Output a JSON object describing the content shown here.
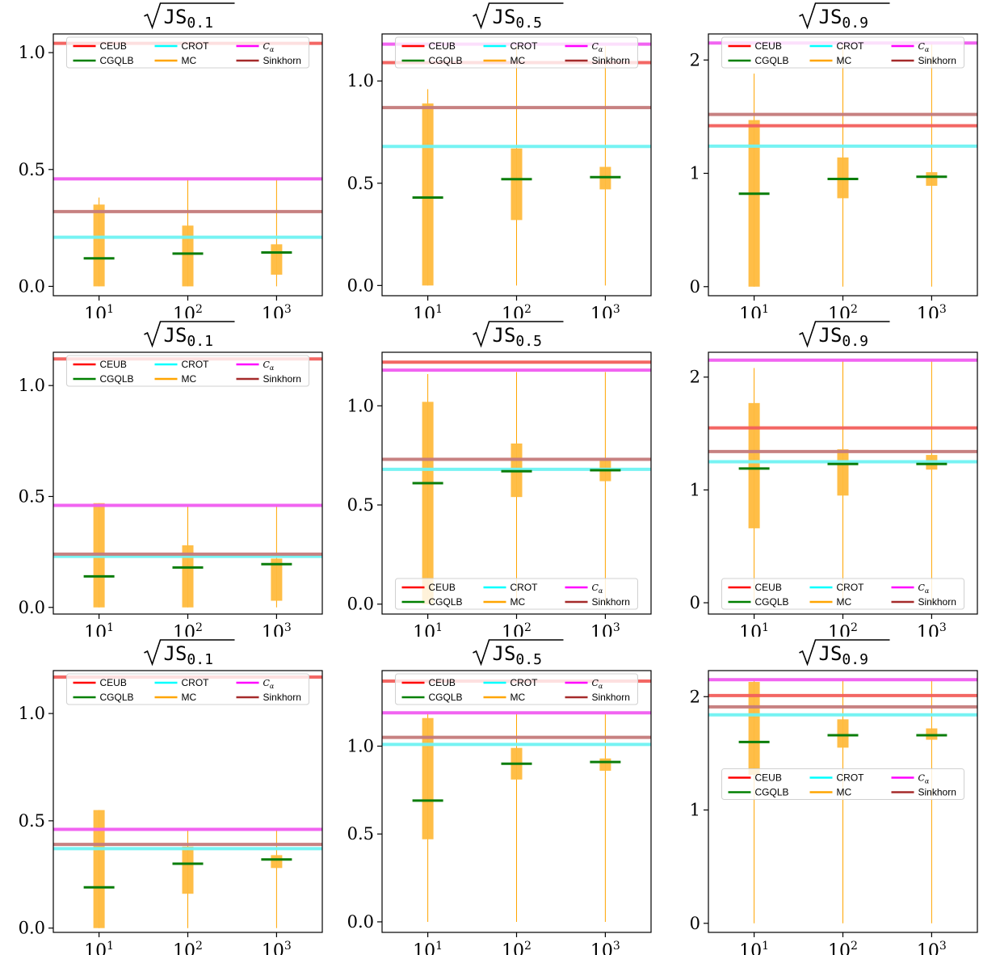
{
  "figure": {
    "rows": 3,
    "cols": 3
  },
  "colors": {
    "CEUB": "#f25f5c",
    "CROT": "#6ff2f2",
    "Calpha": "#f05cf0",
    "Sinkhorn": "#c47a7a",
    "MC": "#ffba3d",
    "MC_line": "#ffa500",
    "CGQLB": "#0a7d0a",
    "legend_CEUB": "#ff0000",
    "legend_CGQLB": "#008000",
    "legend_CROT": "#00ffff",
    "legend_MC": "#ffa500",
    "legend_Calpha": "#ff00ff",
    "legend_Sinkhorn": "#a52a2a"
  },
  "chart_data": [
    {
      "type": "box",
      "title": "√JS0.1",
      "title_main": "JS",
      "title_sub": "0.1",
      "legend_loc": "top",
      "categories": [
        "10^1",
        "10^2",
        "10^3"
      ],
      "ylim": [
        -0.04,
        1.08
      ],
      "yticks": [
        "0.0",
        "0.5",
        "1.0"
      ],
      "ytick_values": [
        0,
        0.5,
        1.0
      ],
      "hlines": {
        "CEUB": 1.04,
        "CROT": 0.21,
        "Calpha": 0.46,
        "Sinkhorn": 0.32
      },
      "mc": [
        {
          "min": 0,
          "q1": 0,
          "q3": 0.35,
          "max": 0.38
        },
        {
          "min": 0,
          "q1": 0,
          "q3": 0.26,
          "max": 0.46
        },
        {
          "min": 0,
          "q1": 0.05,
          "q3": 0.18,
          "max": 0.46
        }
      ],
      "cgqlb": [
        0.12,
        0.14,
        0.145
      ]
    },
    {
      "type": "box",
      "title": "√JS0.5",
      "title_main": "JS",
      "title_sub": "0.5",
      "legend_loc": "top",
      "categories": [
        "10^1",
        "10^2",
        "10^3"
      ],
      "ylim": [
        -0.05,
        1.23
      ],
      "yticks": [
        "0.0",
        "0.5",
        "1.0"
      ],
      "ytick_values": [
        0,
        0.5,
        1.0
      ],
      "hlines": {
        "CEUB": 1.09,
        "CROT": 0.68,
        "Calpha": 1.18,
        "Sinkhorn": 0.87
      },
      "mc": [
        {
          "min": 0,
          "q1": 0,
          "q3": 0.89,
          "max": 0.96
        },
        {
          "min": 0,
          "q1": 0.32,
          "q3": 0.67,
          "max": 1.17
        },
        {
          "min": 0,
          "q1": 0.47,
          "q3": 0.58,
          "max": 1.17
        }
      ],
      "cgqlb": [
        0.43,
        0.52,
        0.53
      ]
    },
    {
      "type": "box",
      "title": "√JS0.9",
      "title_main": "JS",
      "title_sub": "0.9",
      "legend_loc": "top",
      "categories": [
        "10^1",
        "10^2",
        "10^3"
      ],
      "ylim": [
        -0.08,
        2.23
      ],
      "yticks": [
        "0",
        "1",
        "2"
      ],
      "ytick_values": [
        0,
        1,
        2
      ],
      "hlines": {
        "CEUB": 1.42,
        "CROT": 1.24,
        "Calpha": 2.15,
        "Sinkhorn": 1.52
      },
      "mc": [
        {
          "min": 0,
          "q1": 0,
          "q3": 1.47,
          "max": 1.88
        },
        {
          "min": 0,
          "q1": 0.78,
          "q3": 1.14,
          "max": 2.15
        },
        {
          "min": 0,
          "q1": 0.89,
          "q3": 1.01,
          "max": 2.15
        }
      ],
      "cgqlb": [
        0.82,
        0.95,
        0.97
      ]
    },
    {
      "type": "box",
      "title": "√JS0.1",
      "title_main": "JS",
      "title_sub": "0.1",
      "legend_loc": "top",
      "categories": [
        "10^1",
        "10^2",
        "10^3"
      ],
      "ylim": [
        -0.03,
        1.15
      ],
      "yticks": [
        "0.0",
        "0.5",
        "1.0"
      ],
      "ytick_values": [
        0,
        0.5,
        1.0
      ],
      "hlines": {
        "CEUB": 1.12,
        "CROT": 0.23,
        "Calpha": 0.46,
        "Sinkhorn": 0.24
      },
      "mc": [
        {
          "min": 0,
          "q1": 0,
          "q3": 0.47,
          "max": 0.47
        },
        {
          "min": 0,
          "q1": 0,
          "q3": 0.28,
          "max": 0.46
        },
        {
          "min": 0,
          "q1": 0.03,
          "q3": 0.22,
          "max": 0.46
        }
      ],
      "cgqlb": [
        0.14,
        0.18,
        0.195
      ]
    },
    {
      "type": "box",
      "title": "√JS0.5",
      "title_main": "JS",
      "title_sub": "0.5",
      "legend_loc": "bottom",
      "categories": [
        "10^1",
        "10^2",
        "10^3"
      ],
      "ylim": [
        -0.05,
        1.27
      ],
      "yticks": [
        "0.0",
        "0.5",
        "1.0"
      ],
      "ytick_values": [
        0,
        0.5,
        1.0
      ],
      "hlines": {
        "CEUB": 1.22,
        "CROT": 0.68,
        "Calpha": 1.18,
        "Sinkhorn": 0.73
      },
      "mc": [
        {
          "min": 0,
          "q1": 0,
          "q3": 1.02,
          "max": 1.16
        },
        {
          "min": 0,
          "q1": 0.54,
          "q3": 0.81,
          "max": 1.17
        },
        {
          "min": 0,
          "q1": 0.62,
          "q3": 0.73,
          "max": 1.17
        }
      ],
      "cgqlb": [
        0.61,
        0.67,
        0.675
      ]
    },
    {
      "type": "box",
      "title": "√JS0.9",
      "title_main": "JS",
      "title_sub": "0.9",
      "legend_loc": "bottom",
      "categories": [
        "10^1",
        "10^2",
        "10^3"
      ],
      "ylim": [
        -0.1,
        2.22
      ],
      "yticks": [
        "0",
        "1",
        "2"
      ],
      "ytick_values": [
        0,
        1,
        2
      ],
      "hlines": {
        "CEUB": 1.55,
        "CROT": 1.25,
        "Calpha": 2.15,
        "Sinkhorn": 1.34
      },
      "mc": [
        {
          "min": 0,
          "q1": 0.66,
          "q3": 1.77,
          "max": 2.08
        },
        {
          "min": 0,
          "q1": 0.95,
          "q3": 1.36,
          "max": 2.15
        },
        {
          "min": 0,
          "q1": 1.18,
          "q3": 1.31,
          "max": 2.15
        }
      ],
      "cgqlb": [
        1.19,
        1.23,
        1.23
      ]
    },
    {
      "type": "box",
      "title": "√JS0.1",
      "title_main": "JS",
      "title_sub": "0.1",
      "legend_loc": "top",
      "categories": [
        "10^1",
        "10^2",
        "10^3"
      ],
      "ylim": [
        -0.02,
        1.2
      ],
      "yticks": [
        "0.0",
        "0.5",
        "1.0"
      ],
      "ytick_values": [
        0,
        0.5,
        1.0
      ],
      "hlines": {
        "CEUB": 1.17,
        "CROT": 0.37,
        "Calpha": 0.46,
        "Sinkhorn": 0.39
      },
      "mc": [
        {
          "min": 0,
          "q1": 0,
          "q3": 0.55,
          "max": 0.55
        },
        {
          "min": 0,
          "q1": 0.16,
          "q3": 0.38,
          "max": 0.46
        },
        {
          "min": 0,
          "q1": 0.28,
          "q3": 0.34,
          "max": 0.46
        }
      ],
      "cgqlb": [
        0.19,
        0.3,
        0.32
      ]
    },
    {
      "type": "box",
      "title": "√JS0.5",
      "title_main": "JS",
      "title_sub": "0.5",
      "legend_loc": "top",
      "categories": [
        "10^1",
        "10^2",
        "10^3"
      ],
      "ylim": [
        -0.06,
        1.43
      ],
      "yticks": [
        "0.0",
        "0.5",
        "1.0"
      ],
      "ytick_values": [
        0,
        0.5,
        1.0
      ],
      "hlines": {
        "CEUB": 1.37,
        "CROT": 1.01,
        "Calpha": 1.19,
        "Sinkhorn": 1.05
      },
      "mc": [
        {
          "min": 0,
          "q1": 0.47,
          "q3": 1.16,
          "max": 1.19
        },
        {
          "min": 0,
          "q1": 0.81,
          "q3": 0.99,
          "max": 1.19
        },
        {
          "min": 0,
          "q1": 0.86,
          "q3": 0.93,
          "max": 1.19
        }
      ],
      "cgqlb": [
        0.69,
        0.9,
        0.91
      ]
    },
    {
      "type": "box",
      "title": "√JS0.9",
      "title_main": "JS",
      "title_sub": "0.9",
      "legend_loc": "middle",
      "categories": [
        "10^1",
        "10^2",
        "10^3"
      ],
      "ylim": [
        -0.08,
        2.23
      ],
      "yticks": [
        "0",
        "1",
        "2"
      ],
      "ytick_values": [
        0,
        1,
        2
      ],
      "hlines": {
        "CEUB": 2.01,
        "CROT": 1.84,
        "Calpha": 2.15,
        "Sinkhorn": 1.91
      },
      "mc": [
        {
          "min": 0,
          "q1": 1.31,
          "q3": 2.13,
          "max": 2.15
        },
        {
          "min": 0,
          "q1": 1.55,
          "q3": 1.8,
          "max": 2.15
        },
        {
          "min": 0,
          "q1": 1.62,
          "q3": 1.72,
          "max": 2.15
        }
      ],
      "cgqlb": [
        1.6,
        1.66,
        1.66
      ]
    }
  ],
  "legend": {
    "entries": [
      {
        "key": "CEUB",
        "label": "CEUB"
      },
      {
        "key": "CROT",
        "label": "CROT"
      },
      {
        "key": "Calpha",
        "label": "C",
        "sub": "α"
      },
      {
        "key": "CGQLB",
        "label": "CGQLB"
      },
      {
        "key": "MC",
        "label": "MC"
      },
      {
        "key": "Sinkhorn",
        "label": "Sinkhorn"
      }
    ]
  },
  "xticks": [
    {
      "base": "10",
      "exp": "1"
    },
    {
      "base": "10",
      "exp": "2"
    },
    {
      "base": "10",
      "exp": "3"
    }
  ]
}
